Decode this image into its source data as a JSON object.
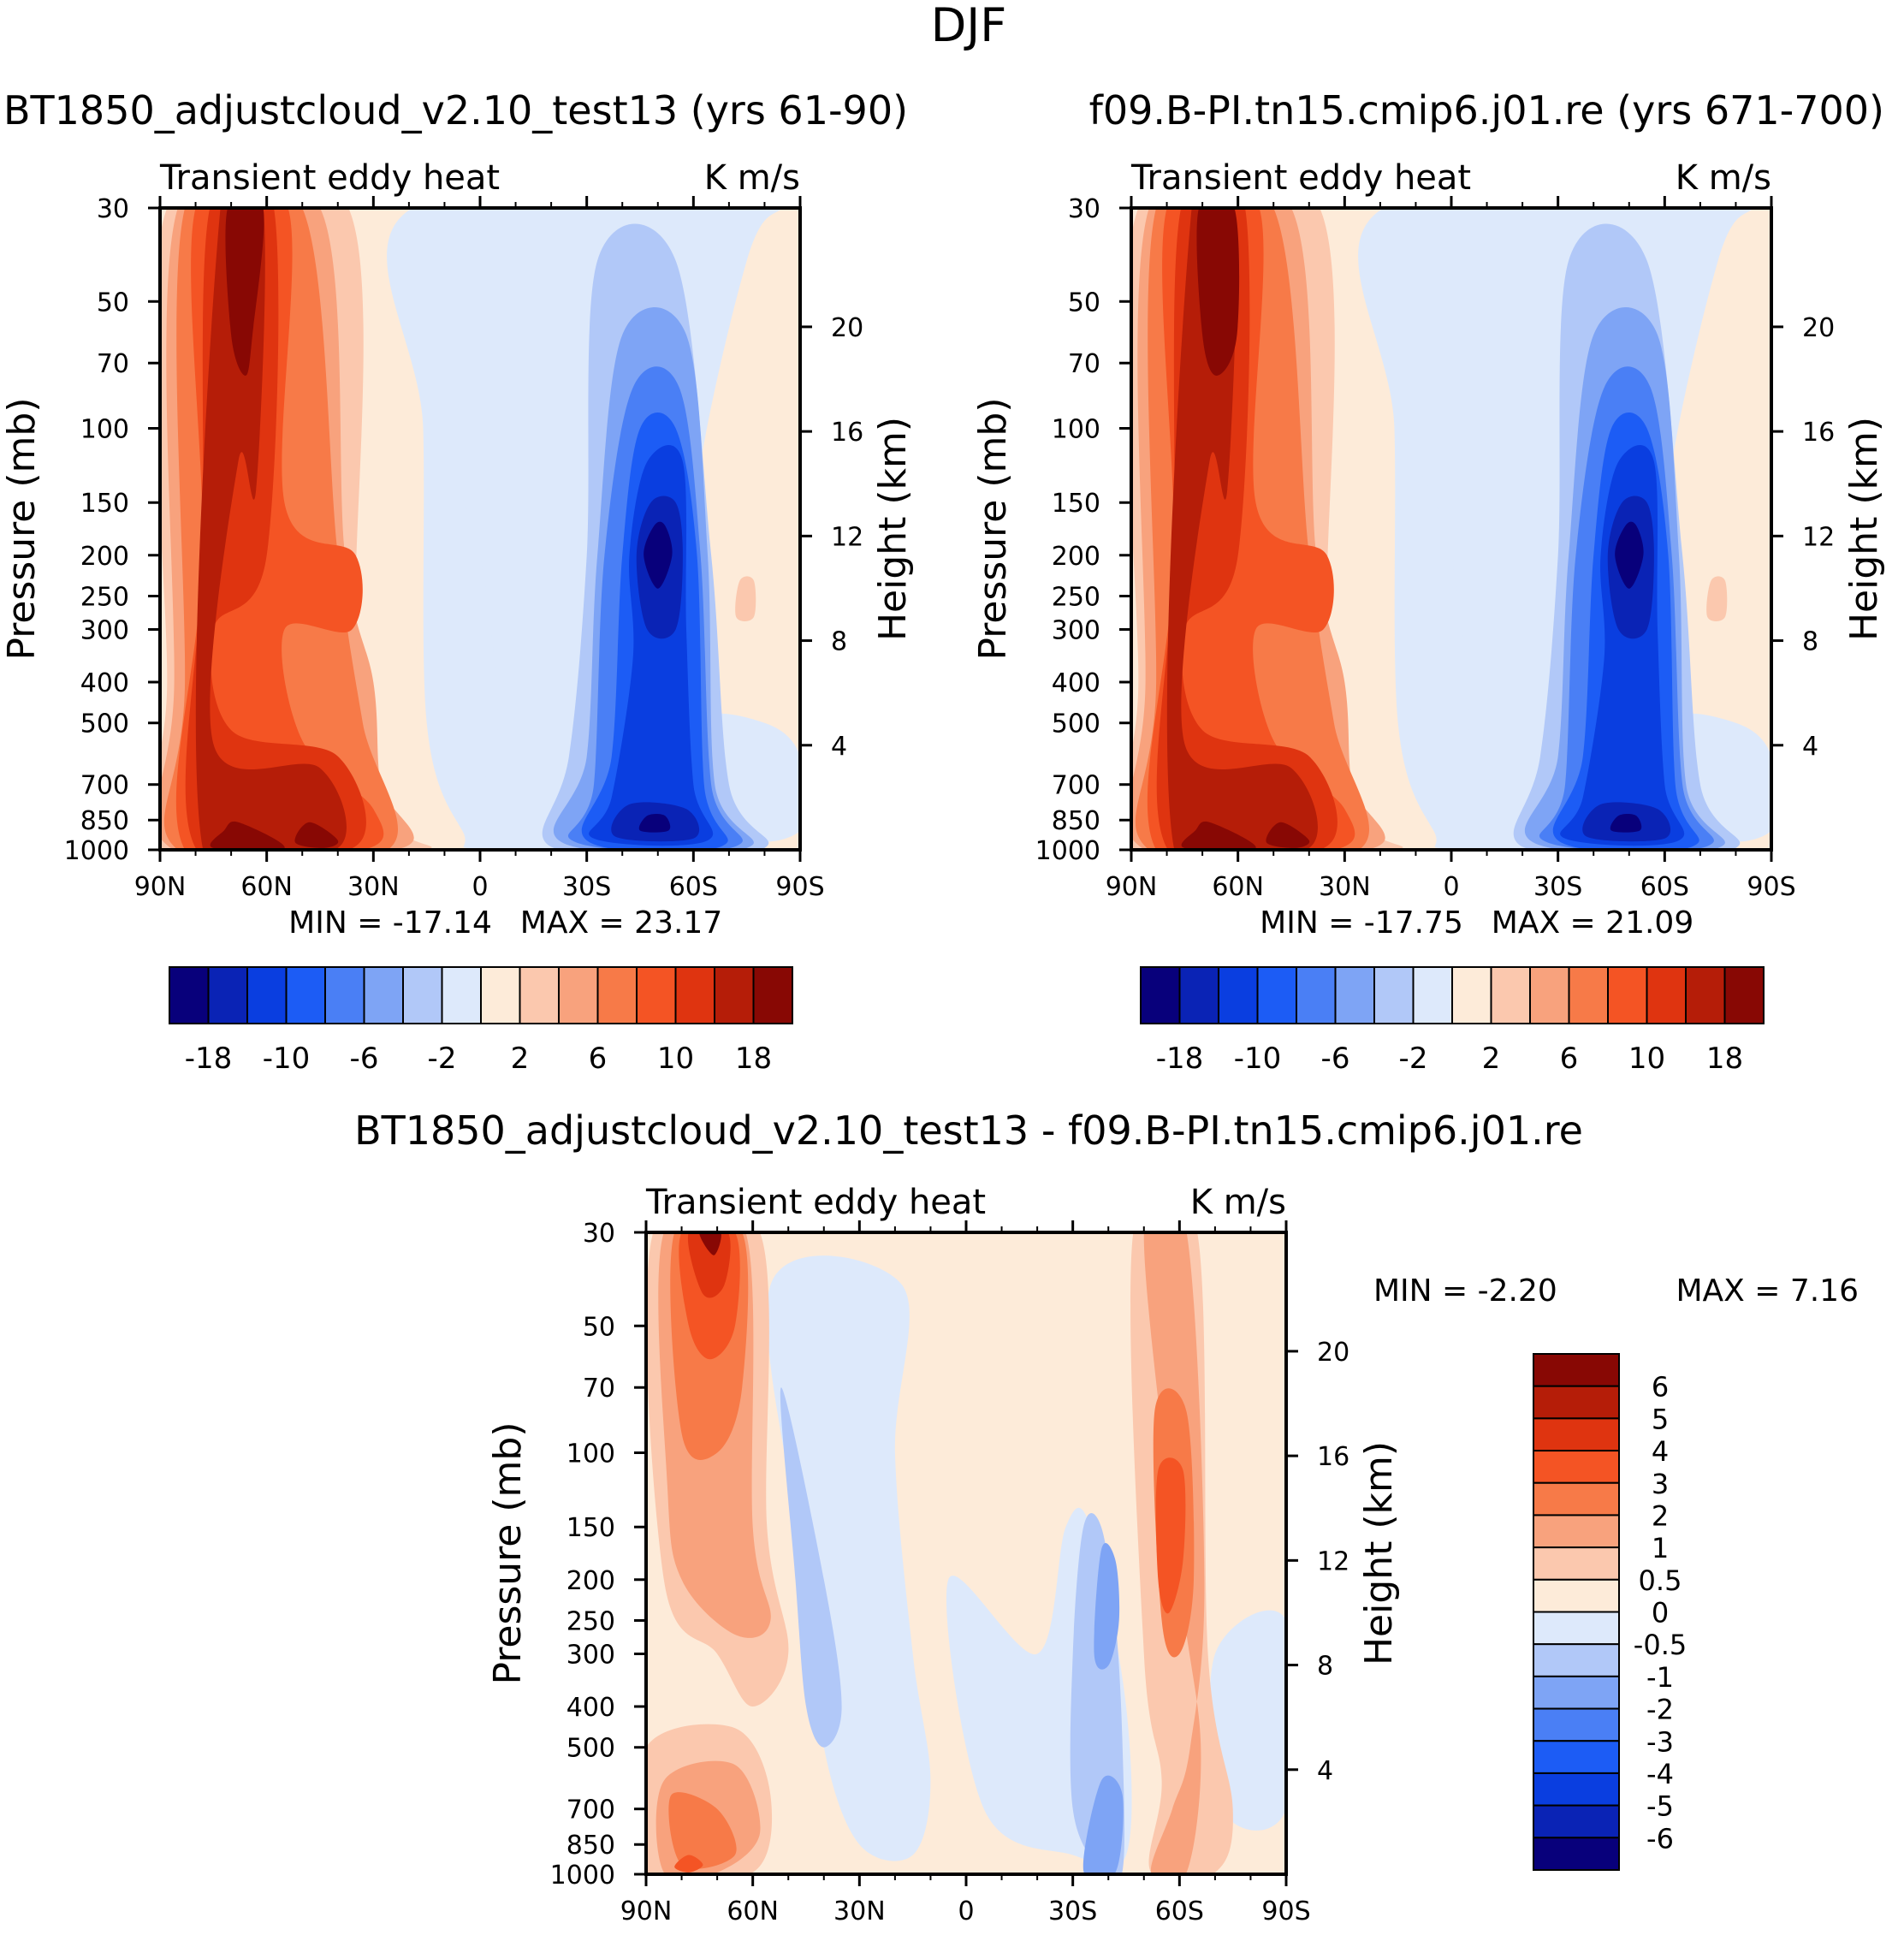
{
  "title": "DJF",
  "colors": {
    "scale": [
      "#08007b",
      "#0a23b5",
      "#0a3ee0",
      "#1c5cf5",
      "#4a7ff5",
      "#7ea4f5",
      "#b1c8f8",
      "#dde9fb",
      "#fdebd9",
      "#fbc8ae",
      "#f8a27d",
      "#f77a48",
      "#f45424",
      "#df3410",
      "#b51d08",
      "#880804"
    ],
    "axis": "#000000"
  },
  "chart_data": [
    {
      "id": "panel-a",
      "type": "contour",
      "case_title": "BT1850_adjustcloud_v2.10_test13 (yrs 61-90)",
      "left_title": "Transient eddy heat",
      "right_title": "K m/s",
      "ylabel": "Pressure (mb)",
      "ylabel_right": "Height (km)",
      "xticks": [
        "90N",
        "60N",
        "30N",
        "0",
        "30S",
        "60S",
        "90S"
      ],
      "xtick_values": [
        90,
        60,
        30,
        0,
        -30,
        -60,
        -90
      ],
      "yticks": [
        "30",
        "50",
        "70",
        "100",
        "150",
        "200",
        "250",
        "300",
        "400",
        "500",
        "700",
        "850",
        "1000"
      ],
      "ytick_values": [
        30,
        50,
        70,
        100,
        150,
        200,
        250,
        300,
        400,
        500,
        700,
        850,
        1000
      ],
      "height_ticks": [
        "20",
        "16",
        "12",
        "8",
        "4"
      ],
      "height_values": [
        20,
        16,
        12,
        8,
        4
      ],
      "min_label": "MIN = -17.14",
      "max_label": "MAX = 23.17",
      "min": -17.14,
      "max": 23.17,
      "levels": [
        -18,
        -14,
        -10,
        -8,
        -6,
        -4,
        -2,
        0,
        2,
        4,
        6,
        8,
        10,
        14,
        18
      ],
      "colorbar_labels": [
        "-18",
        "-10",
        "-6",
        "-2",
        "2",
        "6",
        "10",
        "18"
      ],
      "features": [
        {
          "name": "nh-upper-max",
          "lat": 65,
          "p": 35,
          "value": 22
        },
        {
          "name": "nh-lower-max",
          "lat": 55,
          "p": 900,
          "value": 23
        },
        {
          "name": "sh-upper-min",
          "lat": -50,
          "p": 200,
          "value": -17
        },
        {
          "name": "sh-lower-min",
          "lat": -48,
          "p": 800,
          "value": -16
        }
      ]
    },
    {
      "id": "panel-b",
      "type": "contour",
      "case_title": "f09.B-PI.tn15.cmip6.j01.re (yrs 671-700)",
      "left_title": "Transient eddy heat",
      "right_title": "K m/s",
      "ylabel": "Pressure (mb)",
      "ylabel_right": "Height (km)",
      "xticks": [
        "90N",
        "60N",
        "30N",
        "0",
        "30S",
        "60S",
        "90S"
      ],
      "xtick_values": [
        90,
        60,
        30,
        0,
        -30,
        -60,
        -90
      ],
      "yticks": [
        "30",
        "50",
        "70",
        "100",
        "150",
        "200",
        "250",
        "300",
        "400",
        "500",
        "700",
        "850",
        "1000"
      ],
      "ytick_values": [
        30,
        50,
        70,
        100,
        150,
        200,
        250,
        300,
        400,
        500,
        700,
        850,
        1000
      ],
      "height_ticks": [
        "20",
        "16",
        "12",
        "8",
        "4"
      ],
      "height_values": [
        20,
        16,
        12,
        8,
        4
      ],
      "min_label": "MIN = -17.75",
      "max_label": "MAX = 21.09",
      "min": -17.75,
      "max": 21.09,
      "levels": [
        -18,
        -14,
        -10,
        -8,
        -6,
        -4,
        -2,
        0,
        2,
        4,
        6,
        8,
        10,
        14,
        18
      ],
      "colorbar_labels": [
        "-18",
        "-10",
        "-6",
        "-2",
        "2",
        "6",
        "10",
        "18"
      ],
      "features": [
        {
          "name": "nh-upper-max",
          "lat": 65,
          "p": 35,
          "value": 16
        },
        {
          "name": "nh-lower-max",
          "lat": 55,
          "p": 900,
          "value": 21
        },
        {
          "name": "sh-upper-min",
          "lat": -50,
          "p": 200,
          "value": -17.5
        },
        {
          "name": "sh-lower-min",
          "lat": -48,
          "p": 800,
          "value": -16
        }
      ]
    },
    {
      "id": "panel-c",
      "type": "contour",
      "case_title": "BT1850_adjustcloud_v2.10_test13 - f09.B-PI.tn15.cmip6.j01.re",
      "left_title": "Transient eddy heat",
      "right_title": "K m/s",
      "ylabel": "Pressure (mb)",
      "ylabel_right": "Height (km)",
      "xticks": [
        "90N",
        "60N",
        "30N",
        "0",
        "30S",
        "60S",
        "90S"
      ],
      "xtick_values": [
        90,
        60,
        30,
        0,
        -30,
        -60,
        -90
      ],
      "yticks": [
        "30",
        "50",
        "70",
        "100",
        "150",
        "200",
        "250",
        "300",
        "400",
        "500",
        "700",
        "850",
        "1000"
      ],
      "ytick_values": [
        30,
        50,
        70,
        100,
        150,
        200,
        250,
        300,
        400,
        500,
        700,
        850,
        1000
      ],
      "height_ticks": [
        "20",
        "16",
        "12",
        "8",
        "4"
      ],
      "height_values": [
        20,
        16,
        12,
        8,
        4
      ],
      "min_label": "MIN = -2.20",
      "max_label": "MAX = 7.16",
      "min": -2.2,
      "max": 7.16,
      "levels": [
        -6,
        -5,
        -4,
        -3,
        -2,
        -1,
        -0.5,
        0,
        0.5,
        1,
        2,
        3,
        4,
        5,
        6
      ],
      "colorbar_labels": [
        "6",
        "5",
        "4",
        "3",
        "2",
        "1",
        "0.5",
        "0",
        "-0.5",
        "-1",
        "-2",
        "-3",
        "-4",
        "-5",
        "-6"
      ],
      "features": [
        {
          "name": "nh-upper-max",
          "lat": 70,
          "p": 33,
          "value": 7
        },
        {
          "name": "sh-upper-max",
          "lat": -57,
          "p": 180,
          "value": 4
        },
        {
          "name": "sh-upper-min",
          "lat": -40,
          "p": 200,
          "value": -2.2
        },
        {
          "name": "nh-lower-max",
          "lat": 75,
          "p": 900,
          "value": 4
        }
      ]
    }
  ]
}
